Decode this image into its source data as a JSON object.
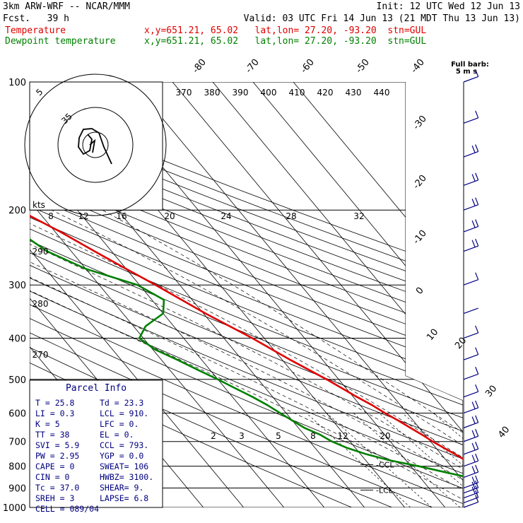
{
  "header": {
    "model": "3km ARW-WRF -- NCAR/MMM",
    "init": "Init: 12 UTC Wed 12 Jun 13",
    "fcst": "Fcst.   39 h",
    "valid": "Valid: 03 UTC Fri 14 Jun 13 (21 MDT Thu 13 Jun 13)",
    "temp_label": "Temperature",
    "temp_info": "x,y=651.21, 65.02   lat,lon= 27.20, -93.20  stn=GUL",
    "dew_label": "Dewpoint temperature",
    "dew_info": "x,y=651.21, 65.02   lat,lon= 27.20, -93.20  stn=GUL"
  },
  "colors": {
    "temperature": "#e00000",
    "dewpoint": "#008000",
    "wind": "#000080",
    "parcel_text": "#000080"
  },
  "chart_data": {
    "type": "line",
    "chart_kind": "skew-T log-P sounding",
    "y_axis": {
      "scale": "log",
      "ylim": [
        1000,
        100
      ],
      "ticks": [
        "100",
        "200",
        "300",
        "400",
        "500",
        "600",
        "700",
        "800",
        "900",
        "1000"
      ]
    },
    "isotherm_labels": [
      "-80",
      "-70",
      "-60",
      "-50",
      "-40",
      "-30",
      "-20",
      "-10",
      "0",
      "10",
      "20",
      "30",
      "40"
    ],
    "theta_labels": [
      "370",
      "380",
      "390",
      "400",
      "410",
      "420",
      "430",
      "440"
    ],
    "theta_left_labels": [
      "290",
      "280",
      "270"
    ],
    "mixing_ratio_labels": [
      "2",
      "3",
      "5",
      "8",
      "12",
      "20"
    ],
    "hodograph": {
      "kts_label": "kts",
      "ring_labels": [
        "5",
        "35"
      ],
      "speed_labels": [
        "8",
        "12",
        "16",
        "20",
        "24",
        "28",
        "32"
      ]
    },
    "barb_header": "Full barb:",
    "barb_units": "5 m s",
    "level_markers": [
      "CCL",
      "LCL"
    ],
    "series": [
      {
        "name": "Temperature",
        "points": [
          [
            1000,
            25.8
          ],
          [
            975,
            24.2
          ],
          [
            950,
            22.0
          ],
          [
            925,
            20.6
          ],
          [
            900,
            19.3
          ],
          [
            875,
            19.3
          ],
          [
            850,
            18.6
          ],
          [
            825,
            17.2
          ],
          [
            800,
            16.0
          ],
          [
            775,
            14.8
          ],
          [
            750,
            13.5
          ],
          [
            725,
            12.0
          ],
          [
            700,
            10.5
          ],
          [
            675,
            9.3
          ],
          [
            650,
            7.8
          ],
          [
            625,
            6.3
          ],
          [
            600,
            4.5
          ],
          [
            575,
            3.0
          ],
          [
            550,
            0.9
          ],
          [
            525,
            -1.0
          ],
          [
            500,
            -3.0
          ],
          [
            450,
            -8.0
          ],
          [
            400,
            -13.0
          ],
          [
            350,
            -19.5
          ],
          [
            300,
            -26.0
          ],
          [
            275,
            -30.0
          ],
          [
            250,
            -34.2
          ],
          [
            225,
            -38.7
          ],
          [
            200,
            -44.5
          ],
          [
            175,
            -51.0
          ],
          [
            150,
            -58.5
          ],
          [
            140,
            -61.0
          ],
          [
            125,
            -62.5
          ],
          [
            110,
            -66.0
          ],
          [
            100,
            -68.5
          ]
        ]
      },
      {
        "name": "Dewpoint temperature",
        "points": [
          [
            1000,
            23.3
          ],
          [
            975,
            20.5
          ],
          [
            950,
            18.0
          ],
          [
            925,
            14.0
          ],
          [
            900,
            13.3
          ],
          [
            875,
            13.8
          ],
          [
            850,
            12.0
          ],
          [
            825,
            7.0
          ],
          [
            800,
            2.0
          ],
          [
            775,
            -4.0
          ],
          [
            750,
            -8.5
          ],
          [
            725,
            -12.0
          ],
          [
            700,
            -14.5
          ],
          [
            675,
            -16.0
          ],
          [
            650,
            -18.5
          ],
          [
            625,
            -20.0
          ],
          [
            600,
            -21.5
          ],
          [
            575,
            -23.0
          ],
          [
            550,
            -25.0
          ],
          [
            525,
            -27.5
          ],
          [
            500,
            -30.0
          ],
          [
            475,
            -33.0
          ],
          [
            450,
            -36.0
          ],
          [
            425,
            -39.5
          ],
          [
            400,
            -41.0
          ],
          [
            375,
            -37.0
          ],
          [
            350,
            -30.0
          ],
          [
            325,
            -27.0
          ],
          [
            300,
            -30.5
          ],
          [
            275,
            -40.0
          ],
          [
            250,
            -46.0
          ],
          [
            225,
            -49.0
          ],
          [
            200,
            -57.0
          ],
          [
            190,
            -58.0
          ],
          [
            175,
            -60.5
          ],
          [
            150,
            -70.0
          ],
          [
            125,
            -75.0
          ],
          [
            100,
            -82.0
          ]
        ]
      }
    ],
    "wind_barbs": [
      {
        "p": 1000,
        "speed_ms": 5
      },
      {
        "p": 975,
        "speed_ms": 7
      },
      {
        "p": 950,
        "speed_ms": 10
      },
      {
        "p": 925,
        "speed_ms": 12
      },
      {
        "p": 900,
        "speed_ms": 12
      },
      {
        "p": 850,
        "speed_ms": 12
      },
      {
        "p": 800,
        "speed_ms": 12
      },
      {
        "p": 750,
        "speed_ms": 10
      },
      {
        "p": 700,
        "speed_ms": 10
      },
      {
        "p": 650,
        "speed_ms": 10
      },
      {
        "p": 600,
        "speed_ms": 10
      },
      {
        "p": 550,
        "speed_ms": 7
      },
      {
        "p": 500,
        "speed_ms": 7
      },
      {
        "p": 450,
        "speed_ms": 7
      },
      {
        "p": 400,
        "speed_ms": 5
      },
      {
        "p": 350,
        "speed_ms": 2
      },
      {
        "p": 300,
        "speed_ms": 5
      },
      {
        "p": 250,
        "speed_ms": 10
      },
      {
        "p": 225,
        "speed_ms": 12
      },
      {
        "p": 200,
        "speed_ms": 12
      },
      {
        "p": 175,
        "speed_ms": 12
      },
      {
        "p": 150,
        "speed_ms": 10
      },
      {
        "p": 125,
        "speed_ms": 7
      },
      {
        "p": 100,
        "speed_ms": 5
      }
    ]
  },
  "parcel_info": {
    "title": "Parcel Info",
    "rows": [
      [
        "T  =   25.8",
        "Td =  23.3"
      ],
      [
        "LI =    0.3",
        "LCL =  910."
      ],
      [
        "K  =      5",
        "LFC =    0."
      ],
      [
        "TT =     38",
        "EL  =    0."
      ],
      [
        "SVI =   5.9",
        "CCL =  793."
      ],
      [
        "PW =   2.95",
        "YGP =   0.0"
      ],
      [
        "CAPE =     0",
        "SWEAT=  106"
      ],
      [
        "CIN =      0",
        "HWBZ= 3100."
      ],
      [
        "Tc =    37.0",
        "SHEAR=   9."
      ],
      [
        "SREH =     3",
        "LAPSE=  6.8"
      ],
      [
        "CELL = 089/04",
        ""
      ]
    ]
  }
}
